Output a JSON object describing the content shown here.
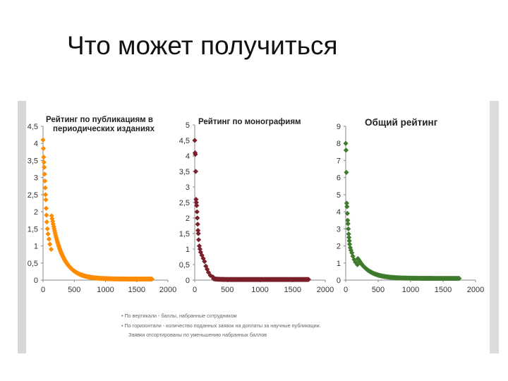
{
  "slide": {
    "title": "Что может получиться"
  },
  "chart_data": [
    {
      "type": "scatter",
      "title_lines": [
        "Рейтинг по публикациям в",
        "периодических изданиях"
      ],
      "color": "#ff8c00",
      "xlim": [
        0,
        2000
      ],
      "ylim": [
        0,
        4.5
      ],
      "x_ticks": [
        "0",
        "500",
        "1000",
        "1500",
        "2000"
      ],
      "y_ticks": [
        "0",
        "0,5",
        "1",
        "1,5",
        "2",
        "2,5",
        "3",
        "3,5",
        "4",
        "4,5"
      ],
      "curve": {
        "max_x": 1750,
        "start": 4.1,
        "k": 10,
        "floor": 0.03
      },
      "points": [
        [
          0,
          4.1
        ],
        [
          5,
          3.85
        ],
        [
          10,
          3.6
        ],
        [
          15,
          3.45
        ],
        [
          20,
          3.3
        ],
        [
          25,
          3.1
        ],
        [
          30,
          2.9
        ],
        [
          35,
          2.7
        ],
        [
          40,
          2.5
        ],
        [
          45,
          2.35
        ],
        [
          50,
          2.1
        ],
        [
          55,
          1.9
        ],
        [
          60,
          1.7
        ],
        [
          70,
          1.5
        ],
        [
          80,
          1.35
        ],
        [
          95,
          1.2
        ],
        [
          110,
          1.05
        ],
        [
          130,
          0.9
        ]
      ]
    },
    {
      "type": "scatter",
      "title_lines": [
        "Рейтинг по монографиям"
      ],
      "color": "#7a1f2b",
      "xlim": [
        0,
        2000
      ],
      "ylim": [
        0,
        5
      ],
      "x_ticks": [
        "0",
        "500",
        "1000",
        "1500",
        "2000"
      ],
      "y_ticks": [
        "0",
        "0,5",
        "1",
        "1,5",
        "2",
        "2,5",
        "3",
        "3,5",
        "4",
        "4,5",
        "5"
      ],
      "curve": {
        "max_x": 1750,
        "start": 2.5,
        "k": 28,
        "floor": 0.02
      },
      "points": [
        [
          0,
          4.5
        ],
        [
          5,
          4.1
        ],
        [
          10,
          4.05
        ],
        [
          15,
          3.5
        ],
        [
          20,
          2.6
        ],
        [
          25,
          2.5
        ],
        [
          30,
          2.4
        ],
        [
          35,
          2.2
        ],
        [
          40,
          2.0
        ],
        [
          45,
          1.8
        ],
        [
          50,
          1.6
        ],
        [
          55,
          1.5
        ],
        [
          60,
          1.3
        ],
        [
          70,
          1.1
        ],
        [
          80,
          1.0
        ],
        [
          90,
          0.9
        ],
        [
          110,
          0.8
        ],
        [
          130,
          0.7
        ],
        [
          150,
          0.6
        ],
        [
          170,
          0.45
        ],
        [
          190,
          0.35
        ],
        [
          210,
          0.25
        ],
        [
          240,
          0.15
        ],
        [
          280,
          0.1
        ]
      ]
    },
    {
      "type": "scatter",
      "title_lines": [
        "Общий рейтинг"
      ],
      "color": "#3f7a2d",
      "xlim": [
        0,
        2000
      ],
      "ylim": [
        0,
        9
      ],
      "x_ticks": [
        "0",
        "500",
        "1000",
        "1500",
        "2000"
      ],
      "y_ticks": [
        "0",
        "1",
        "2",
        "3",
        "4",
        "5",
        "6",
        "7",
        "8",
        "9"
      ],
      "curve": {
        "max_x": 1750,
        "start": 3.5,
        "k": 10,
        "floor": 0.1
      },
      "points": [
        [
          0,
          8.0
        ],
        [
          5,
          7.6
        ],
        [
          10,
          6.3
        ],
        [
          15,
          4.5
        ],
        [
          20,
          4.3
        ],
        [
          25,
          3.9
        ],
        [
          30,
          3.5
        ],
        [
          35,
          3.3
        ],
        [
          40,
          3.0
        ],
        [
          45,
          2.7
        ],
        [
          50,
          2.5
        ],
        [
          55,
          2.3
        ],
        [
          60,
          2.1
        ],
        [
          70,
          1.9
        ],
        [
          80,
          1.75
        ],
        [
          95,
          1.6
        ],
        [
          110,
          1.4
        ],
        [
          130,
          1.2
        ],
        [
          150,
          1.05
        ],
        [
          180,
          0.9
        ]
      ]
    }
  ],
  "notes": [
    "• По вертикали - баллы, набранные сотрудником",
    "• По горизонтали - количество поданных заявок на доплаты за научные публикации.",
    "Заявки отсортированы по уменьшению набранных баллов"
  ]
}
